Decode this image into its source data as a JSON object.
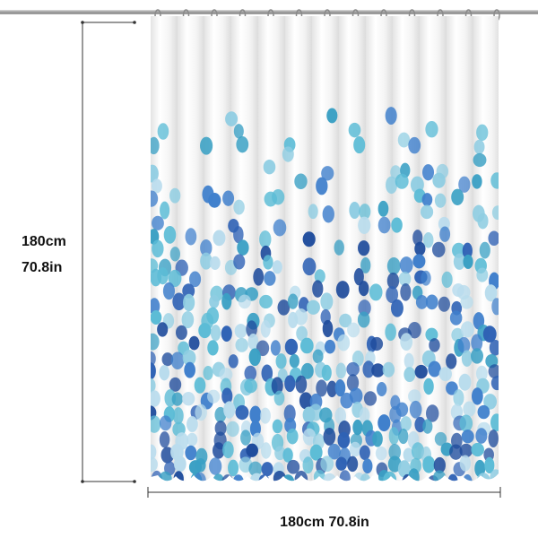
{
  "height_label": {
    "metric": "180cm",
    "imperial": "70.8in"
  },
  "width_label": {
    "metric": "180cm",
    "imperial": "70.8in"
  }
}
